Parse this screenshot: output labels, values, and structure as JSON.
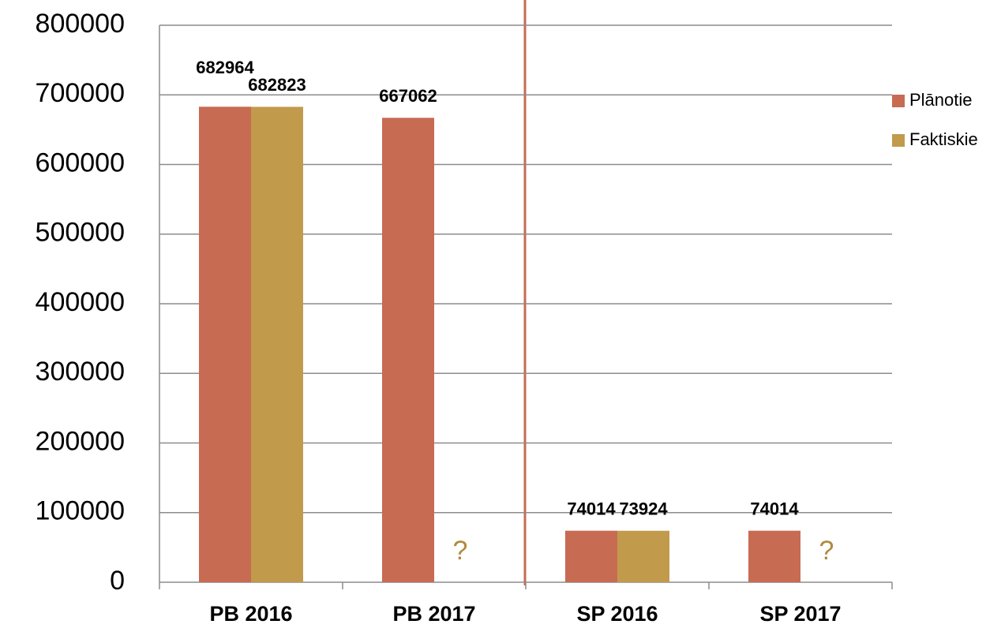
{
  "chart_data": {
    "type": "bar",
    "categories": [
      "PB 2016",
      "PB 2017",
      "SP 2016",
      "SP 2017"
    ],
    "series": [
      {
        "name": "Plānotie",
        "color": "#c76b52",
        "values": [
          682964,
          667062,
          74014,
          74014
        ]
      },
      {
        "name": "Faktiskie",
        "color": "#c19a4c",
        "values": [
          682823,
          null,
          73924,
          null
        ]
      }
    ],
    "annotations": [
      "?",
      "?"
    ],
    "ylim": [
      0,
      800000
    ],
    "yticks": [
      0,
      100000,
      200000,
      300000,
      400000,
      500000,
      600000,
      700000,
      800000
    ],
    "grid": true,
    "legend": "right"
  }
}
